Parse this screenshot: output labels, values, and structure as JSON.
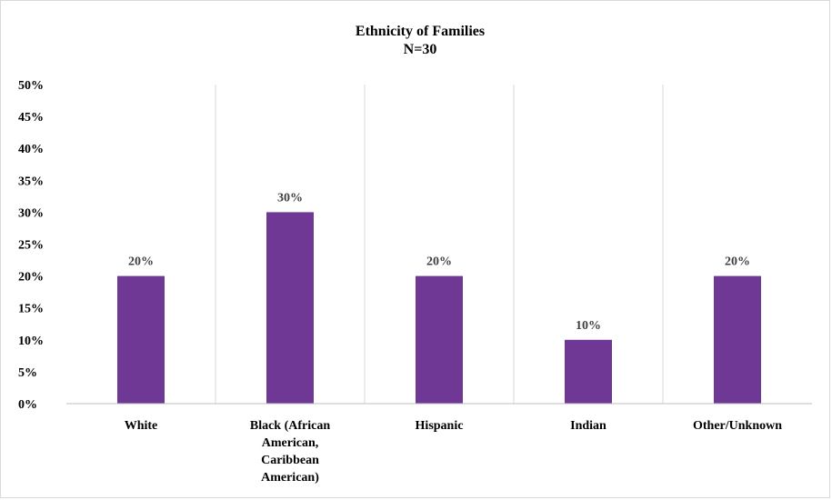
{
  "chart_data": {
    "type": "bar",
    "title": "Ethnicity of Families",
    "subtitle": "N=30",
    "categories": [
      [
        "White"
      ],
      [
        "Black (African",
        "American,",
        "Caribbean",
        "American)"
      ],
      [
        "Hispanic"
      ],
      [
        "Indian"
      ],
      [
        "Other/Unknown"
      ]
    ],
    "values": [
      20,
      30,
      20,
      10,
      20
    ],
    "data_labels": [
      "20%",
      "30%",
      "20%",
      "10%",
      "20%"
    ],
    "ylim": [
      0,
      50
    ],
    "y_ticks": [
      "0%",
      "5%",
      "10%",
      "15%",
      "20%",
      "25%",
      "30%",
      "35%",
      "40%",
      "45%",
      "50%"
    ],
    "bar_color": "#6f3895",
    "grid": "vertical separators",
    "legend": "none"
  }
}
